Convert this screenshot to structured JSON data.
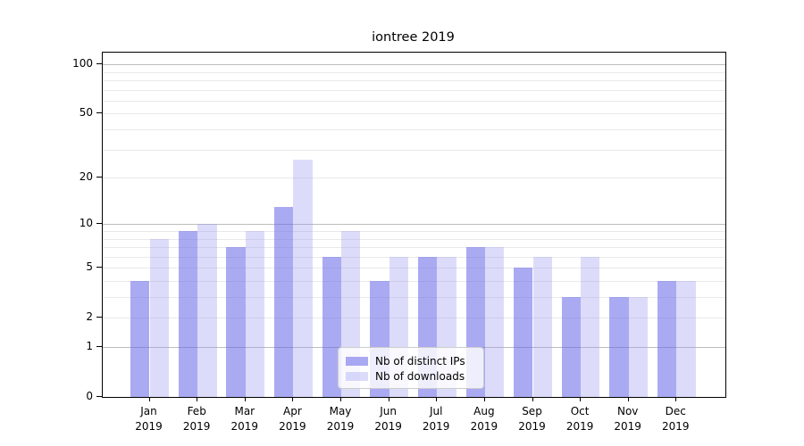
{
  "title": "iontree 2019",
  "chart_data": {
    "type": "bar",
    "title": "iontree 2019",
    "categories": [
      "Jan",
      "Feb",
      "Mar",
      "Apr",
      "May",
      "Jun",
      "Jul",
      "Aug",
      "Sep",
      "Oct",
      "Nov",
      "Dec"
    ],
    "x_year_label": "2019",
    "series": [
      {
        "name": "Nb of distinct IPs",
        "values": [
          4,
          9,
          7,
          13,
          6,
          4,
          6,
          7,
          5,
          3,
          3,
          4
        ]
      },
      {
        "name": "Nb of downloads",
        "values": [
          8,
          10,
          9,
          26,
          9,
          6,
          6,
          7,
          6,
          6,
          3,
          4
        ]
      }
    ],
    "yscale": "log1p",
    "ylim": [
      0,
      118
    ],
    "yticks": [
      0,
      1,
      2,
      5,
      10,
      20,
      50,
      100
    ],
    "grid_major": [
      1,
      10,
      100
    ],
    "grid_minor": [
      2,
      3,
      4,
      5,
      6,
      7,
      8,
      9,
      20,
      30,
      40,
      50,
      60,
      70,
      80,
      90
    ],
    "legend_position": "lower center-right inside plot",
    "colors": {
      "ip_bar": "rgba(105,105,234,0.57)",
      "downloads_bar": "rgba(155,155,241,0.35)",
      "grid_major": "#bdbdbd",
      "grid_minor": "#e9e9e9",
      "spine": "#000000",
      "legend_border": "#cccccc"
    }
  }
}
